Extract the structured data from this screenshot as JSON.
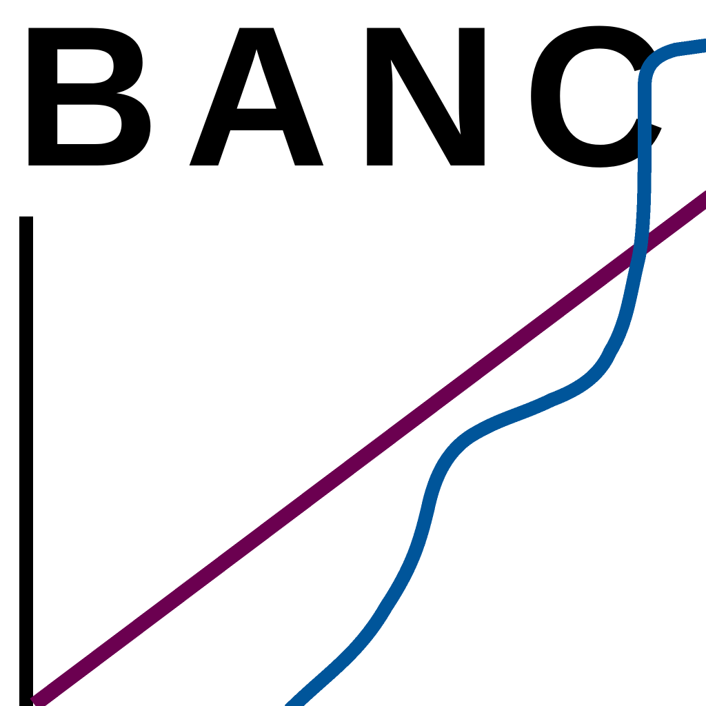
{
  "logo": {
    "text": "BANC",
    "text_color": "#000000",
    "background_color": "#ffffff",
    "colors": {
      "axis": "#000000",
      "purple_line": "#6b0050",
      "blue_line": "#00559a"
    }
  }
}
